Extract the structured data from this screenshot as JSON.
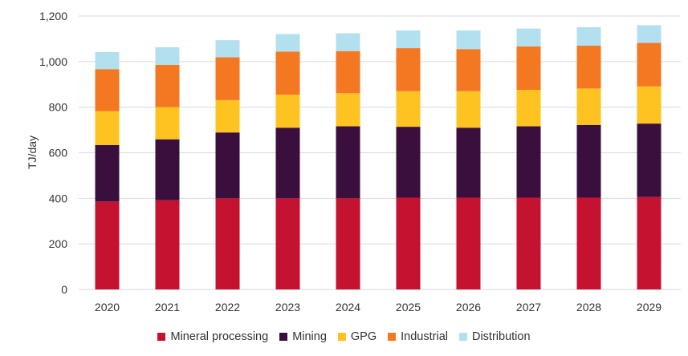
{
  "chart_data": {
    "type": "bar",
    "stacked": true,
    "title": "",
    "xlabel": "",
    "ylabel": "TJ/day",
    "ylim": [
      0,
      1200
    ],
    "yticks": [
      0,
      200,
      400,
      600,
      800,
      1000,
      1200
    ],
    "ytick_labels": [
      "0",
      "200",
      "400",
      "600",
      "800",
      "1,000",
      "1,200"
    ],
    "grid": true,
    "legend_position": "bottom",
    "categories": [
      "2020",
      "2021",
      "2022",
      "2023",
      "2024",
      "2025",
      "2026",
      "2027",
      "2028",
      "2029"
    ],
    "series": [
      {
        "name": "Mineral processing",
        "color": "#c41230",
        "values": [
          386,
          392,
          400,
          400,
          400,
          403,
          403,
          403,
          403,
          406
        ]
      },
      {
        "name": "Mining",
        "color": "#3a0f3d",
        "values": [
          248,
          267,
          289,
          310,
          316,
          311,
          307,
          313,
          319,
          322
        ]
      },
      {
        "name": "GPG",
        "color": "#fec221",
        "values": [
          149,
          141,
          142,
          145,
          145,
          156,
          160,
          160,
          160,
          163
        ]
      },
      {
        "name": "Industrial",
        "color": "#f47721",
        "values": [
          184,
          186,
          188,
          189,
          185,
          189,
          185,
          191,
          188,
          191
        ]
      },
      {
        "name": "Distribution",
        "color": "#b3e0ee",
        "values": [
          75,
          77,
          75,
          77,
          78,
          78,
          82,
          78,
          81,
          78
        ]
      }
    ]
  }
}
